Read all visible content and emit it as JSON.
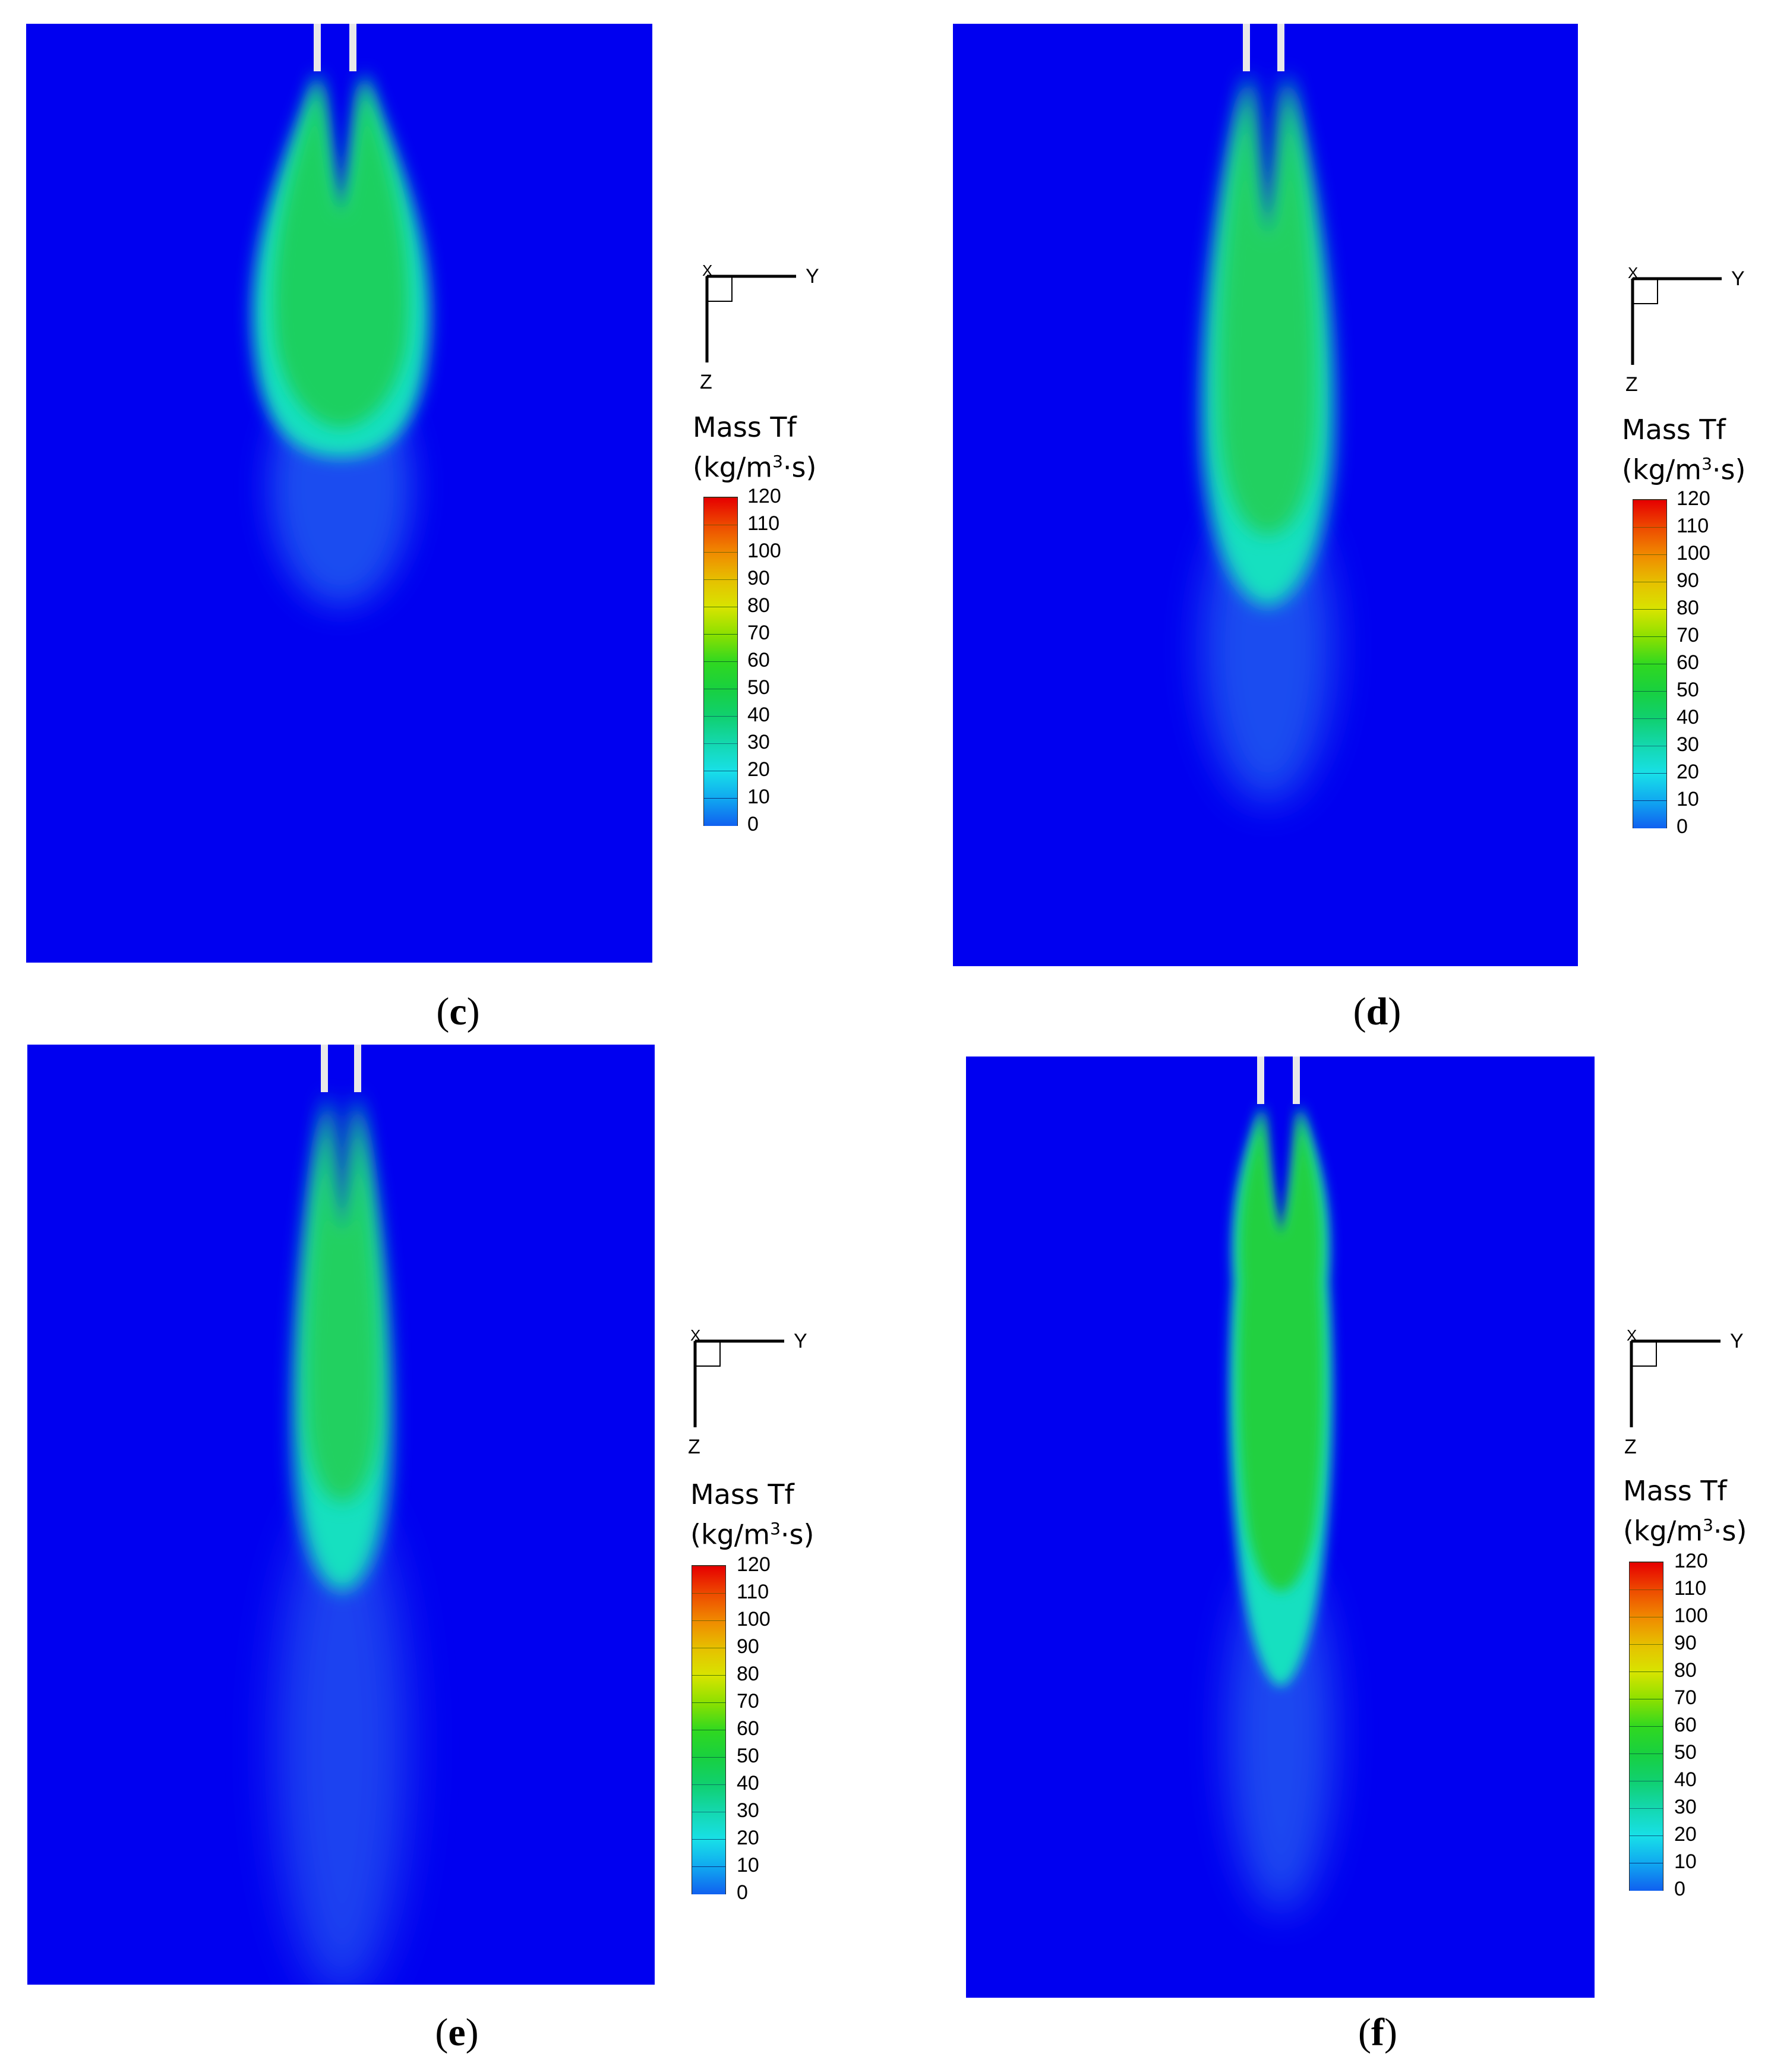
{
  "colorbar": {
    "title_line1": "Mass Tf",
    "title_unit_pre": "(kg/m",
    "title_unit_sup": "3",
    "title_unit_post": "·s)",
    "ticks": [
      "120",
      "110",
      "100",
      "90",
      "80",
      "70",
      "60",
      "50",
      "40",
      "30",
      "20",
      "10",
      "0"
    ],
    "colors": [
      "#e60000",
      "#ee4a00",
      "#f08a00",
      "#e6c000",
      "#d8e400",
      "#8ce000",
      "#30d820",
      "#18d040",
      "#10d070",
      "#14d8b0",
      "#18e0e8",
      "#10a8f0",
      "#1060f0",
      "#0000f0"
    ]
  },
  "axes_labels": {
    "y": "Y",
    "z": "Z",
    "x": "X"
  },
  "chart_data": [
    {
      "type": "heatmap",
      "caption": "c",
      "plume_length": 0.58,
      "plume_width": 0.22,
      "peak": 60,
      "colorbar_range": [
        0,
        120
      ]
    },
    {
      "type": "heatmap",
      "caption": "d",
      "plume_length": 0.82,
      "plume_width": 0.24,
      "peak": 58,
      "colorbar_range": [
        0,
        120
      ]
    },
    {
      "type": "heatmap",
      "caption": "e",
      "plume_length": 1.0,
      "plume_width": 0.16,
      "peak": 55,
      "colorbar_range": [
        0,
        120
      ]
    },
    {
      "type": "heatmap",
      "caption": "f",
      "plume_length": 0.85,
      "plume_width": 0.17,
      "peak": 62,
      "colorbar_range": [
        0,
        120
      ]
    }
  ]
}
